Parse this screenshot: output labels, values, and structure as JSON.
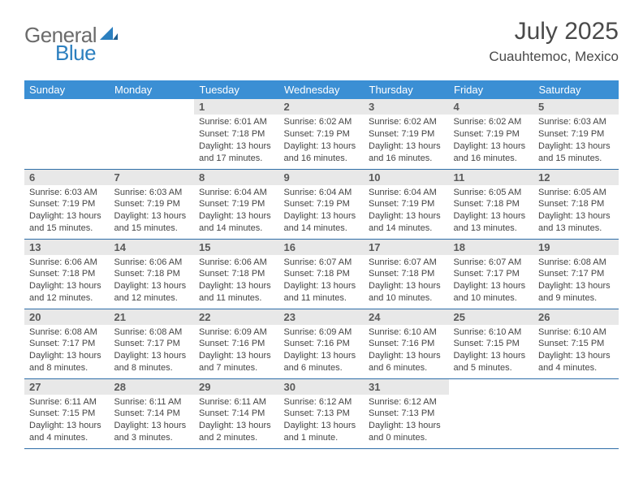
{
  "brand": {
    "part1": "General",
    "part2": "Blue"
  },
  "title": "July 2025",
  "location": "Cuauhtemoc, Mexico",
  "colors": {
    "header_bg": "#3b8fd4",
    "header_fg": "#ffffff",
    "daynum_bg": "#e8e8e8",
    "week_divider": "#2f6ea8",
    "logo_gray": "#6b6b6b",
    "logo_blue": "#2b7fbf",
    "text": "#3a3a3a"
  },
  "weekdays": [
    "Sunday",
    "Monday",
    "Tuesday",
    "Wednesday",
    "Thursday",
    "Friday",
    "Saturday"
  ],
  "weeks": [
    [
      null,
      null,
      {
        "n": "1",
        "sr": "6:01 AM",
        "ss": "7:18 PM",
        "dl": "13 hours and 17 minutes."
      },
      {
        "n": "2",
        "sr": "6:02 AM",
        "ss": "7:19 PM",
        "dl": "13 hours and 16 minutes."
      },
      {
        "n": "3",
        "sr": "6:02 AM",
        "ss": "7:19 PM",
        "dl": "13 hours and 16 minutes."
      },
      {
        "n": "4",
        "sr": "6:02 AM",
        "ss": "7:19 PM",
        "dl": "13 hours and 16 minutes."
      },
      {
        "n": "5",
        "sr": "6:03 AM",
        "ss": "7:19 PM",
        "dl": "13 hours and 15 minutes."
      }
    ],
    [
      {
        "n": "6",
        "sr": "6:03 AM",
        "ss": "7:19 PM",
        "dl": "13 hours and 15 minutes."
      },
      {
        "n": "7",
        "sr": "6:03 AM",
        "ss": "7:19 PM",
        "dl": "13 hours and 15 minutes."
      },
      {
        "n": "8",
        "sr": "6:04 AM",
        "ss": "7:19 PM",
        "dl": "13 hours and 14 minutes."
      },
      {
        "n": "9",
        "sr": "6:04 AM",
        "ss": "7:19 PM",
        "dl": "13 hours and 14 minutes."
      },
      {
        "n": "10",
        "sr": "6:04 AM",
        "ss": "7:19 PM",
        "dl": "13 hours and 14 minutes."
      },
      {
        "n": "11",
        "sr": "6:05 AM",
        "ss": "7:18 PM",
        "dl": "13 hours and 13 minutes."
      },
      {
        "n": "12",
        "sr": "6:05 AM",
        "ss": "7:18 PM",
        "dl": "13 hours and 13 minutes."
      }
    ],
    [
      {
        "n": "13",
        "sr": "6:06 AM",
        "ss": "7:18 PM",
        "dl": "13 hours and 12 minutes."
      },
      {
        "n": "14",
        "sr": "6:06 AM",
        "ss": "7:18 PM",
        "dl": "13 hours and 12 minutes."
      },
      {
        "n": "15",
        "sr": "6:06 AM",
        "ss": "7:18 PM",
        "dl": "13 hours and 11 minutes."
      },
      {
        "n": "16",
        "sr": "6:07 AM",
        "ss": "7:18 PM",
        "dl": "13 hours and 11 minutes."
      },
      {
        "n": "17",
        "sr": "6:07 AM",
        "ss": "7:18 PM",
        "dl": "13 hours and 10 minutes."
      },
      {
        "n": "18",
        "sr": "6:07 AM",
        "ss": "7:17 PM",
        "dl": "13 hours and 10 minutes."
      },
      {
        "n": "19",
        "sr": "6:08 AM",
        "ss": "7:17 PM",
        "dl": "13 hours and 9 minutes."
      }
    ],
    [
      {
        "n": "20",
        "sr": "6:08 AM",
        "ss": "7:17 PM",
        "dl": "13 hours and 8 minutes."
      },
      {
        "n": "21",
        "sr": "6:08 AM",
        "ss": "7:17 PM",
        "dl": "13 hours and 8 minutes."
      },
      {
        "n": "22",
        "sr": "6:09 AM",
        "ss": "7:16 PM",
        "dl": "13 hours and 7 minutes."
      },
      {
        "n": "23",
        "sr": "6:09 AM",
        "ss": "7:16 PM",
        "dl": "13 hours and 6 minutes."
      },
      {
        "n": "24",
        "sr": "6:10 AM",
        "ss": "7:16 PM",
        "dl": "13 hours and 6 minutes."
      },
      {
        "n": "25",
        "sr": "6:10 AM",
        "ss": "7:15 PM",
        "dl": "13 hours and 5 minutes."
      },
      {
        "n": "26",
        "sr": "6:10 AM",
        "ss": "7:15 PM",
        "dl": "13 hours and 4 minutes."
      }
    ],
    [
      {
        "n": "27",
        "sr": "6:11 AM",
        "ss": "7:15 PM",
        "dl": "13 hours and 4 minutes."
      },
      {
        "n": "28",
        "sr": "6:11 AM",
        "ss": "7:14 PM",
        "dl": "13 hours and 3 minutes."
      },
      {
        "n": "29",
        "sr": "6:11 AM",
        "ss": "7:14 PM",
        "dl": "13 hours and 2 minutes."
      },
      {
        "n": "30",
        "sr": "6:12 AM",
        "ss": "7:13 PM",
        "dl": "13 hours and 1 minute."
      },
      {
        "n": "31",
        "sr": "6:12 AM",
        "ss": "7:13 PM",
        "dl": "13 hours and 0 minutes."
      },
      null,
      null
    ]
  ],
  "labels": {
    "sunrise": "Sunrise: ",
    "sunset": "Sunset: ",
    "daylight": "Daylight: "
  }
}
